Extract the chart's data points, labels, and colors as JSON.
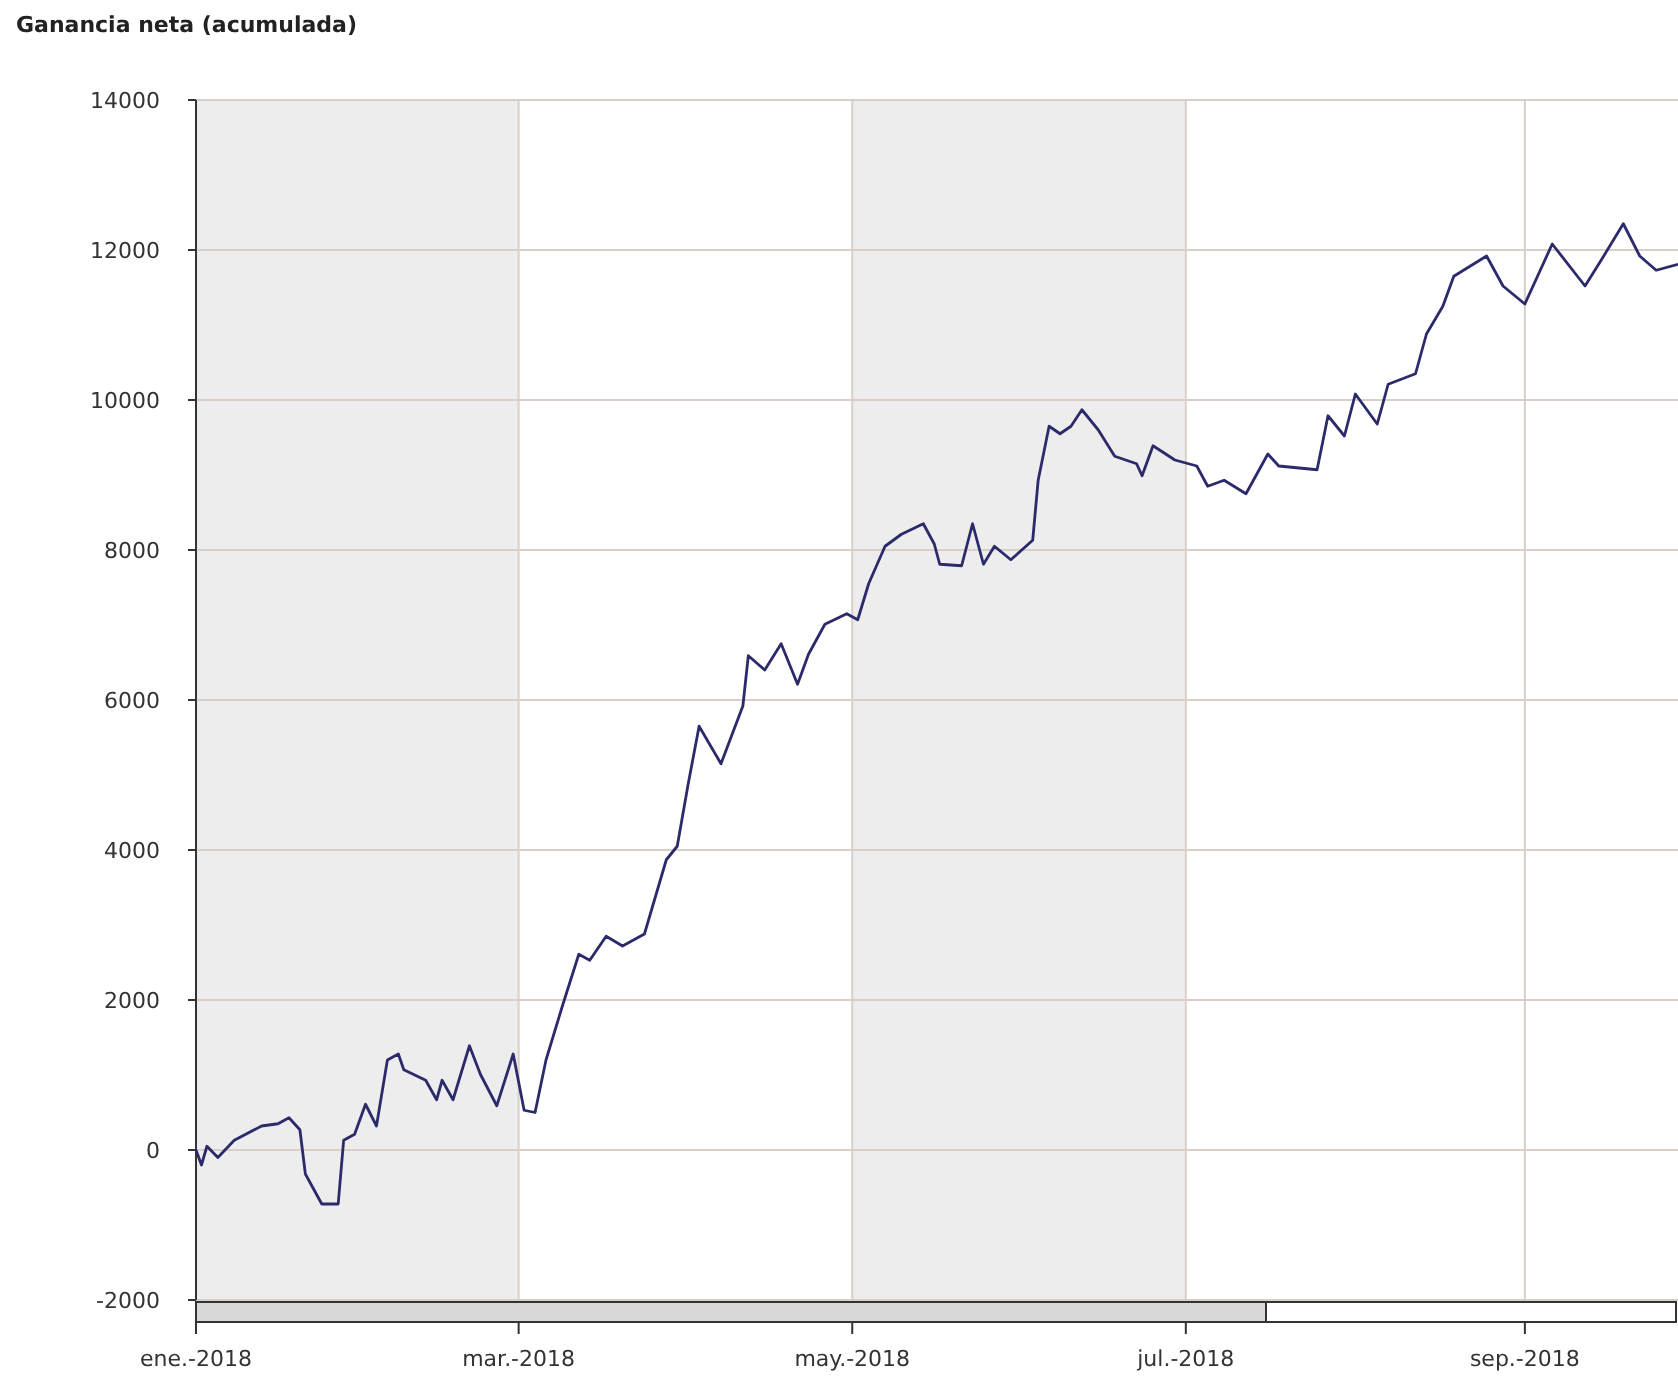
{
  "chart_data": {
    "type": "line",
    "title": "Ganancia neta (acumulada)",
    "x": [
      "2018-01-01",
      "2018-01-02",
      "2018-01-03",
      "2018-01-05",
      "2018-01-08",
      "2018-01-13",
      "2018-01-16",
      "2018-01-18",
      "2018-01-20",
      "2018-01-21",
      "2018-01-24",
      "2018-01-27",
      "2018-01-28",
      "2018-01-30",
      "2018-02-01",
      "2018-02-03",
      "2018-02-05",
      "2018-02-07",
      "2018-02-08",
      "2018-02-12",
      "2018-02-14",
      "2018-02-15",
      "2018-02-17",
      "2018-02-20",
      "2018-02-22",
      "2018-02-25",
      "2018-02-28",
      "2018-03-02",
      "2018-03-04",
      "2018-03-06",
      "2018-03-09",
      "2018-03-12",
      "2018-03-14",
      "2018-03-17",
      "2018-03-20",
      "2018-03-24",
      "2018-03-28",
      "2018-03-30",
      "2018-04-01",
      "2018-04-03",
      "2018-04-07",
      "2018-04-11",
      "2018-04-12",
      "2018-04-15",
      "2018-04-18",
      "2018-04-21",
      "2018-04-23",
      "2018-04-26",
      "2018-04-30",
      "2018-05-02",
      "2018-05-04",
      "2018-05-07",
      "2018-05-10",
      "2018-05-14",
      "2018-05-16",
      "2018-05-17",
      "2018-05-21",
      "2018-05-23",
      "2018-05-25",
      "2018-05-27",
      "2018-05-30",
      "2018-06-03",
      "2018-06-04",
      "2018-06-06",
      "2018-06-08",
      "2018-06-10",
      "2018-06-12",
      "2018-06-15",
      "2018-06-18",
      "2018-06-22",
      "2018-06-23",
      "2018-06-25",
      "2018-06-29",
      "2018-07-03",
      "2018-07-05",
      "2018-07-08",
      "2018-07-12",
      "2018-07-16",
      "2018-07-18",
      "2018-07-25",
      "2018-07-27",
      "2018-07-30",
      "2018-08-01",
      "2018-08-05",
      "2018-08-07",
      "2018-08-12",
      "2018-08-14",
      "2018-08-17",
      "2018-08-19",
      "2018-08-25",
      "2018-08-28",
      "2018-09-01",
      "2018-09-06",
      "2018-09-12",
      "2018-09-15",
      "2018-09-19",
      "2018-09-22",
      "2018-09-25",
      "2018-09-29"
    ],
    "series": [
      {
        "color": "#2b2a6b",
        "values": [
          0,
          -200,
          50,
          -100,
          130,
          320,
          350,
          430,
          270,
          -320,
          -720,
          -720,
          130,
          210,
          610,
          320,
          1200,
          1280,
          1070,
          930,
          670,
          930,
          670,
          1390,
          1010,
          590,
          1280,
          530,
          500,
          1200,
          1920,
          2610,
          2530,
          2850,
          2720,
          2880,
          3870,
          4050,
          4880,
          5650,
          5150,
          5920,
          6590,
          6400,
          6750,
          6210,
          6610,
          7010,
          7150,
          7070,
          7550,
          8050,
          8210,
          8350,
          8080,
          7810,
          7790,
          8350,
          7810,
          8050,
          7870,
          8130,
          8930,
          9650,
          9550,
          9650,
          9870,
          9600,
          9250,
          9150,
          8990,
          9390,
          9200,
          9120,
          8850,
          8930,
          8750,
          9280,
          9120,
          9070,
          9790,
          9520,
          10080,
          9680,
          10210,
          10350,
          10880,
          11250,
          11650,
          11920,
          11520,
          11280,
          12080,
          11520,
          11870,
          12350,
          11920,
          11730,
          11810
        ]
      }
    ],
    "xlim": [
      "2018-01-01",
      "2018-09-29"
    ],
    "xticks": [
      {
        "value": "2018-01-01",
        "label": "ene.-2018"
      },
      {
        "value": "2018-03-01",
        "label": "mar.-2018"
      },
      {
        "value": "2018-05-01",
        "label": "may.-2018"
      },
      {
        "value": "2018-07-01",
        "label": "jul.-2018"
      },
      {
        "value": "2018-09-01",
        "label": "sep.-2018"
      }
    ],
    "ylim": [
      -2000,
      14000
    ],
    "yticks": [
      -2000,
      0,
      2000,
      4000,
      6000,
      8000,
      10000,
      12000,
      14000
    ],
    "bands": [
      {
        "axis": "x",
        "from": "2018-01-01",
        "to": "2018-03-01",
        "color": "#ededed"
      },
      {
        "axis": "x",
        "from": "2018-05-01",
        "to": "2018-07-01",
        "color": "#ededed"
      }
    ],
    "grid": true
  }
}
